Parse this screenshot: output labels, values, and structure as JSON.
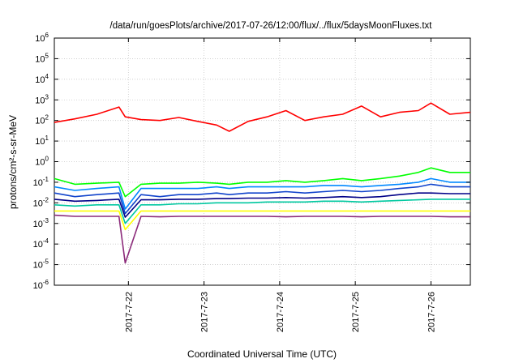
{
  "chart_data": {
    "type": "line",
    "title": "/data/run/goesPlots/archive/2017-07-26/12:00/flux/../flux/5daysMoonFluxes.txt",
    "xlabel": "Coordinated Universal Time (UTC)",
    "ylabel": "protons/cm²-s-sr-MeV",
    "y_scale": "log",
    "xlim": [
      "2017-07-21T00:30",
      "2017-07-26T12:30"
    ],
    "ylim": [
      1e-06,
      1000000.0
    ],
    "x_ticks": [
      "2017-7-22",
      "2017-7-23",
      "2017-7-24",
      "2017-7-25",
      "2017-7-26"
    ],
    "y_ticks": [
      {
        "base": "10",
        "exp": "-6"
      },
      {
        "base": "10",
        "exp": "-5"
      },
      {
        "base": "10",
        "exp": "-4"
      },
      {
        "base": "10",
        "exp": "-3"
      },
      {
        "base": "10",
        "exp": "-2"
      },
      {
        "base": "10",
        "exp": "-1"
      },
      {
        "base": "10",
        "exp": "0"
      },
      {
        "base": "10",
        "exp": "1"
      },
      {
        "base": "10",
        "exp": "2"
      },
      {
        "base": "10",
        "exp": "3"
      },
      {
        "base": "10",
        "exp": "4"
      },
      {
        "base": "10",
        "exp": "5"
      },
      {
        "base": "10",
        "exp": "6"
      }
    ],
    "grid": true,
    "x": [
      "2017-07-21T00:30",
      "2017-07-21T07:00",
      "2017-07-21T14:00",
      "2017-07-21T21:00",
      "2017-07-21T23:00",
      "2017-07-22T04:00",
      "2017-07-22T10:00",
      "2017-07-22T16:00",
      "2017-07-22T22:00",
      "2017-07-23T04:00",
      "2017-07-23T08:00",
      "2017-07-23T14:00",
      "2017-07-23T20:00",
      "2017-07-24T02:00",
      "2017-07-24T08:00",
      "2017-07-24T14:00",
      "2017-07-24T20:00",
      "2017-07-25T02:00",
      "2017-07-25T08:00",
      "2017-07-25T14:00",
      "2017-07-25T20:00",
      "2017-07-26T00:00",
      "2017-07-26T06:00",
      "2017-07-26T12:30"
    ],
    "series": [
      {
        "color": "#ff0000",
        "values": [
          80,
          120,
          200,
          450,
          150,
          110,
          100,
          140,
          90,
          60,
          30,
          90,
          150,
          300,
          100,
          150,
          200,
          500,
          150,
          250,
          300,
          700,
          200,
          250
        ]
      },
      {
        "color": "#00ff00",
        "values": [
          0.15,
          0.08,
          0.09,
          0.1,
          0.02,
          0.08,
          0.09,
          0.09,
          0.1,
          0.09,
          0.08,
          0.1,
          0.1,
          0.12,
          0.1,
          0.12,
          0.15,
          0.12,
          0.15,
          0.2,
          0.3,
          0.5,
          0.3,
          0.3
        ]
      },
      {
        "color": "#0088ff",
        "values": [
          0.06,
          0.04,
          0.05,
          0.06,
          0.005,
          0.05,
          0.05,
          0.05,
          0.05,
          0.06,
          0.05,
          0.06,
          0.06,
          0.06,
          0.06,
          0.07,
          0.07,
          0.06,
          0.07,
          0.08,
          0.1,
          0.15,
          0.1,
          0.1
        ]
      },
      {
        "color": "#1144cc",
        "values": [
          0.03,
          0.02,
          0.025,
          0.03,
          0.003,
          0.025,
          0.02,
          0.025,
          0.025,
          0.03,
          0.025,
          0.03,
          0.03,
          0.035,
          0.03,
          0.035,
          0.04,
          0.035,
          0.04,
          0.05,
          0.06,
          0.08,
          0.06,
          0.06
        ]
      },
      {
        "color": "#000088",
        "values": [
          0.015,
          0.012,
          0.013,
          0.015,
          0.002,
          0.014,
          0.014,
          0.015,
          0.015,
          0.016,
          0.016,
          0.017,
          0.017,
          0.018,
          0.017,
          0.018,
          0.02,
          0.018,
          0.02,
          0.025,
          0.03,
          0.03,
          0.028,
          0.028
        ]
      },
      {
        "color": "#00c8a0",
        "values": [
          0.008,
          0.007,
          0.008,
          0.008,
          0.001,
          0.008,
          0.008,
          0.009,
          0.009,
          0.01,
          0.01,
          0.01,
          0.011,
          0.011,
          0.011,
          0.012,
          0.012,
          0.011,
          0.012,
          0.013,
          0.014,
          0.015,
          0.015,
          0.015
        ]
      },
      {
        "color": "#ffff00",
        "values": [
          0.004,
          0.004,
          0.004,
          0.004,
          0.0005,
          0.004,
          0.004,
          0.004,
          0.004,
          0.004,
          0.004,
          0.004,
          0.004,
          0.004,
          0.004,
          0.004,
          0.004,
          0.004,
          0.004,
          0.004,
          0.004,
          0.004,
          0.004,
          0.004
        ]
      },
      {
        "color": "#8b2a7a",
        "values": [
          0.0025,
          0.0022,
          0.0022,
          0.0022,
          1.2e-05,
          0.0022,
          0.0021,
          0.0022,
          0.0022,
          0.0022,
          0.0022,
          0.0022,
          0.0022,
          0.0021,
          0.0022,
          0.0022,
          0.0022,
          0.0021,
          0.0022,
          0.0022,
          0.0022,
          0.0022,
          0.0021,
          0.0021
        ]
      }
    ]
  }
}
